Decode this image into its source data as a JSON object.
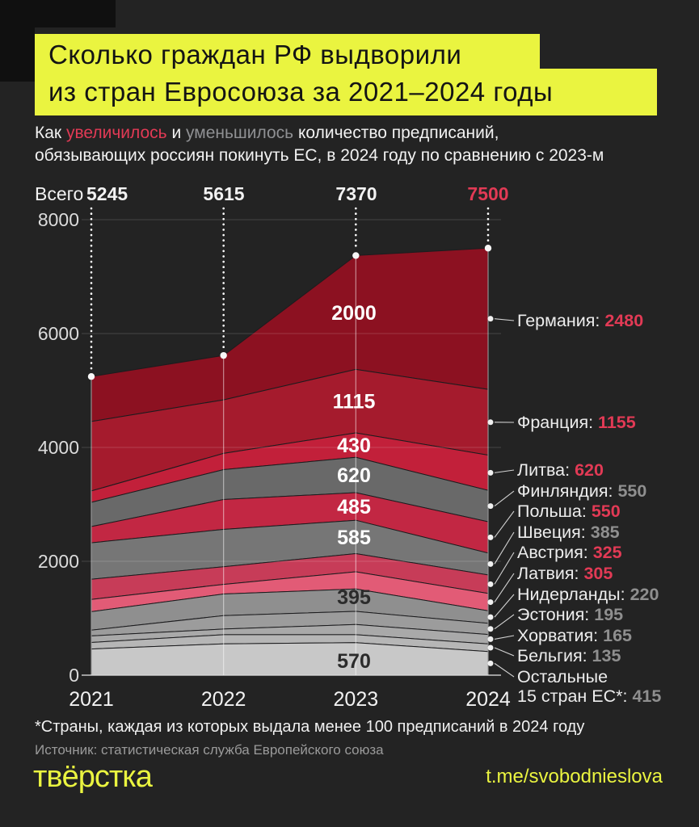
{
  "title": {
    "line1": "Сколько граждан РФ выдворили",
    "line2": "из стран Евросоюза за 2021–2024 годы"
  },
  "subtitle": {
    "lead": "Как ",
    "increased": "увеличилось",
    "mid": " и ",
    "decreased": "уменьшилось",
    "tail": " количество предписаний,",
    "line2": "обязывающих россиян покинуть ЕС, в 2024 году по сравнению с 2023-м"
  },
  "totals_row": {
    "label": "Всего",
    "values": [
      "5245",
      "5615",
      "7370",
      "7500"
    ]
  },
  "chart_data": {
    "type": "area",
    "stacked": true,
    "x": [
      2021,
      2022,
      2023,
      2024
    ],
    "x_labels": [
      "2021",
      "2022",
      "2023",
      "2024"
    ],
    "ylim": [
      0,
      8000
    ],
    "yticks": [
      0,
      2000,
      4000,
      6000,
      8000
    ],
    "grid": true,
    "legend_position": "right",
    "totals": [
      5245,
      5615,
      7370,
      7500
    ],
    "accent_red": "#e23a55",
    "muted_gray": "#8f8f8f",
    "series": [
      {
        "key": "germany",
        "name": "Германия",
        "color": "#8c1121",
        "values": [
          790,
          780,
          2000,
          2480
        ],
        "label_2023": "2000",
        "label_color": "#ffffff",
        "label_pos": "center",
        "legend_name": "Германия: ",
        "legend_value": "2480",
        "value_color": "#e23a55"
      },
      {
        "key": "france",
        "name": "Франция",
        "color": "#a51b2d",
        "values": [
          1220,
          940,
          1115,
          1155
        ],
        "label_2023": "1115",
        "label_color": "#ffffff",
        "label_pos": "center",
        "legend_name": "Франция: ",
        "legend_value": "1155",
        "value_color": "#e23a55"
      },
      {
        "key": "lithuania",
        "name": "Литва",
        "color": "#c2203a",
        "values": [
          200,
          285,
          430,
          620
        ],
        "label_2023": "430",
        "label_color": "#ffffff",
        "label_pos": "center",
        "legend_name": "Литва: ",
        "legend_value": "620",
        "value_color": "#e23a55"
      },
      {
        "key": "finland",
        "name": "Финляндия",
        "color": "#696969",
        "values": [
          425,
          525,
          620,
          550
        ],
        "label_2023": "620",
        "label_color": "#ffffff",
        "label_pos": "center",
        "legend_name": "Финляндия: ",
        "legend_value": "550",
        "value_color": "#8f8f8f"
      },
      {
        "key": "poland",
        "name": "Польша",
        "color": "#c22743",
        "values": [
          285,
          525,
          485,
          550
        ],
        "label_2023": "485",
        "label_color": "#ffffff",
        "label_pos": "center",
        "legend_name": "Польша: ",
        "legend_value": "550",
        "value_color": "#e23a55"
      },
      {
        "key": "sweden",
        "name": "Швеция",
        "color": "#767676",
        "values": [
          640,
          655,
          585,
          385
        ],
        "label_2023": "585",
        "label_color": "#ffffff",
        "label_pos": "center",
        "legend_name": "Швеция: ",
        "legend_value": "385",
        "value_color": "#8f8f8f"
      },
      {
        "key": "austria",
        "name": "Австрия",
        "color": "#c73c58",
        "values": [
          355,
          310,
          320,
          325
        ],
        "legend_name": "Австрия: ",
        "legend_value": "325",
        "value_color": "#e23a55"
      },
      {
        "key": "latvia",
        "name": "Латвия",
        "color": "#e25b76",
        "values": [
          215,
          170,
          300,
          305
        ],
        "legend_name": "Латвия: ",
        "legend_value": "305",
        "value_color": "#e23a55"
      },
      {
        "key": "netherlands",
        "name": "Нидерланды",
        "color": "#8f8f8f",
        "values": [
          325,
          380,
          395,
          220
        ],
        "label_2023": "395",
        "label_color": "#2b2b2b",
        "label_pos": "bottom",
        "legend_name": "Нидерланды: ",
        "legend_value": "220",
        "value_color": "#8f8f8f"
      },
      {
        "key": "estonia",
        "name": "Эстония",
        "color": "#9c9c9c",
        "values": [
          100,
          235,
          230,
          195
        ],
        "legend_name": "Эстония: ",
        "legend_value": "195",
        "value_color": "#8f8f8f"
      },
      {
        "key": "croatia",
        "name": "Хорватия",
        "color": "#a9a9a9",
        "values": [
          115,
          100,
          180,
          165
        ],
        "legend_name": "Хорватия: ",
        "legend_value": "165",
        "value_color": "#8f8f8f"
      },
      {
        "key": "belgium",
        "name": "Бельгия",
        "color": "#b6b6b6",
        "values": [
          115,
          160,
          140,
          135
        ],
        "legend_name": "Бельгия: ",
        "legend_value": "135",
        "value_color": "#8f8f8f"
      },
      {
        "key": "others",
        "name": "Остальные 15 стран ЕС*",
        "color": "#c8c8c8",
        "values": [
          460,
          550,
          570,
          415
        ],
        "label_2023": "570",
        "label_color": "#2b2b2b",
        "label_pos": "bottom",
        "legend_lines": [
          "Остальные",
          "15 стран ЕС*: "
        ],
        "legend_value": "415",
        "value_color": "#8f8f8f"
      }
    ]
  },
  "footnote": "*Страны, каждая из которых выдала менее 100 предписаний в 2024 году",
  "source": "Источник: статистическая служба Европейского союза",
  "footer": {
    "logo": "твёрстка",
    "link": "t.me/svobodnieslova"
  },
  "colors": {
    "background": "#232323",
    "accent_yellow": "#eaf440",
    "accent_red": "#e23a55",
    "muted_gray": "#8f8f8f"
  }
}
